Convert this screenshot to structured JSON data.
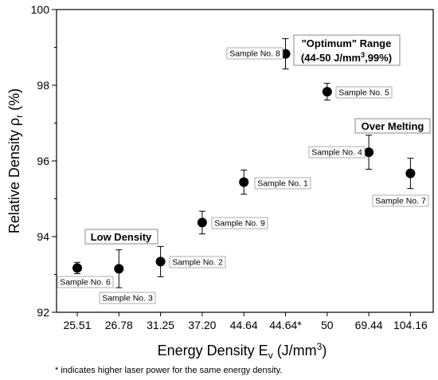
{
  "chart_data": {
    "type": "scatter",
    "xlabel": "Energy Density E",
    "xlabel_sub": "v",
    "xlabel_unit": " (J/mm",
    "xlabel_sup": "3",
    "xlabel_end": ")",
    "ylabel": "Relative Density ρ",
    "ylabel_sub": "r",
    "ylabel_unit": " (%)",
    "categories": [
      "25.51",
      "26.78",
      "31.25",
      "37.20",
      "44.64",
      "44.64*",
      "50",
      "69.44",
      "104.16"
    ],
    "ylim": [
      92,
      100
    ],
    "yticks": [
      92,
      94,
      96,
      98,
      100
    ],
    "points": [
      {
        "category": "25.51",
        "y": 93.17,
        "err": 0.15,
        "label": "Sample No. 6"
      },
      {
        "category": "26.78",
        "y": 93.15,
        "err": 0.5,
        "label": "Sample No. 3"
      },
      {
        "category": "31.25",
        "y": 93.34,
        "err": 0.4,
        "label": "Sample No. 2"
      },
      {
        "category": "37.20",
        "y": 94.37,
        "err": 0.3,
        "label": "Sample No. 9"
      },
      {
        "category": "44.64",
        "y": 95.44,
        "err": 0.32,
        "label": "Sample No. 1"
      },
      {
        "category": "44.64*",
        "y": 98.83,
        "err": 0.4,
        "label": "Sample No. 8"
      },
      {
        "category": "50",
        "y": 97.83,
        "err": 0.22,
        "label": "Sample No. 5"
      },
      {
        "category": "69.44",
        "y": 96.23,
        "err": 0.45,
        "label": "Sample No. 4"
      },
      {
        "category": "104.16",
        "y": 95.67,
        "err": 0.4,
        "label": "Sample No. 7"
      }
    ],
    "annotations": [
      {
        "id": "low-density",
        "lines": [
          "Low Density"
        ]
      },
      {
        "id": "optimum-range",
        "lines": [
          "\"Optimum\" Range",
          "(44-50 J/mm",
          "3",
          ",99%)"
        ]
      },
      {
        "id": "over-melting",
        "lines": [
          "Over Melting"
        ]
      }
    ],
    "footnote": "* indicates higher laser power for the same energy density."
  }
}
